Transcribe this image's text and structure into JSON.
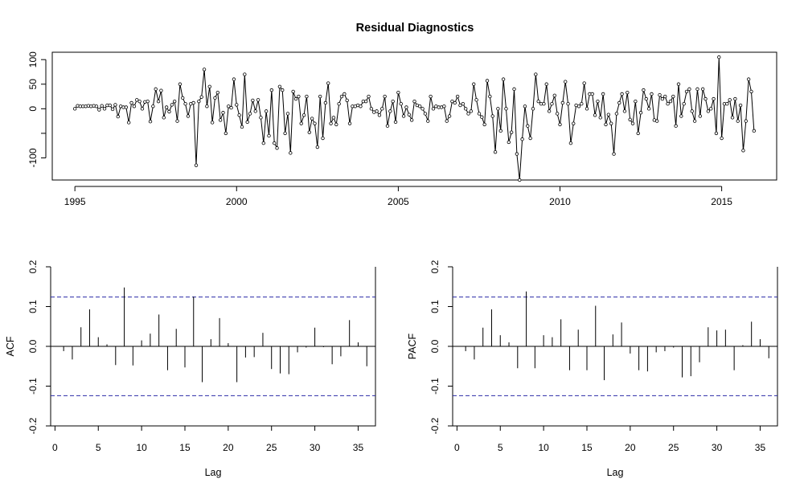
{
  "title": "Residual Diagnostics",
  "chart_data": [
    {
      "type": "line",
      "panel": "residuals",
      "title": "Residual Diagnostics",
      "xlabel": "",
      "ylabel": "",
      "x_ticks": [
        "1995",
        "2000",
        "2005",
        "2010",
        "2015"
      ],
      "y_ticks": [
        "-100",
        "",
        "0",
        "50",
        "100"
      ],
      "xlim": [
        1994.3,
        2016.7
      ],
      "ylim": [
        -145,
        115
      ],
      "grid": false,
      "markers": "open-circle",
      "start": 1995.0,
      "frequency": 12,
      "values": [
        0,
        6,
        5,
        5,
        5,
        6,
        5,
        6,
        5,
        -2,
        6,
        0,
        7,
        7,
        -1,
        8,
        -16,
        5,
        3,
        3,
        -28,
        12,
        5,
        18,
        15,
        0,
        14,
        15,
        -26,
        5,
        40,
        15,
        37,
        -18,
        3,
        -6,
        8,
        15,
        -25,
        50,
        22,
        10,
        -15,
        10,
        12,
        -115,
        15,
        24,
        80,
        5,
        45,
        -28,
        22,
        33,
        -23,
        -8,
        -50,
        5,
        2,
        60,
        8,
        -13,
        -37,
        70,
        -27,
        -10,
        17,
        -5,
        18,
        -18,
        -70,
        -5,
        -55,
        38,
        -70,
        -80,
        45,
        38,
        -50,
        -10,
        -90,
        35,
        20,
        25,
        -30,
        -13,
        25,
        -48,
        -20,
        -30,
        -78,
        25,
        -60,
        12,
        52,
        -30,
        -18,
        -32,
        10,
        25,
        30,
        17,
        -30,
        5,
        5,
        7,
        5,
        15,
        15,
        25,
        0,
        -7,
        -5,
        -13,
        0,
        25,
        -35,
        -5,
        15,
        -27,
        33,
        10,
        -15,
        3,
        -12,
        -23,
        15,
        7,
        5,
        0,
        -10,
        -25,
        25,
        0,
        5,
        3,
        3,
        5,
        -25,
        -15,
        15,
        12,
        25,
        7,
        10,
        0,
        -10,
        -5,
        50,
        18,
        -10,
        -17,
        -32,
        57,
        25,
        -15,
        -88,
        0,
        -45,
        60,
        0,
        -68,
        -48,
        40,
        -92,
        -145,
        -62,
        5,
        -35,
        -60,
        0,
        70,
        15,
        10,
        10,
        50,
        -5,
        10,
        27,
        -10,
        -32,
        12,
        55,
        10,
        -70,
        -30,
        7,
        5,
        10,
        52,
        0,
        30,
        30,
        -13,
        15,
        -18,
        30,
        -32,
        -12,
        -30,
        -92,
        -10,
        12,
        30,
        -5,
        33,
        -22,
        -30,
        15,
        -50,
        -8,
        38,
        20,
        0,
        30,
        -23,
        -25,
        28,
        20,
        25,
        10,
        15,
        25,
        -35,
        50,
        -15,
        10,
        35,
        40,
        -5,
        -25,
        40,
        -15,
        40,
        20,
        -5,
        0,
        20,
        -50,
        105,
        -60,
        10,
        10,
        18,
        -18,
        20,
        -25,
        7,
        -85,
        -25,
        60,
        35,
        -45
      ]
    },
    {
      "type": "bar",
      "panel": "acf",
      "xlabel": "Lag",
      "ylabel": "ACF",
      "x_ticks": [
        "0",
        "5",
        "10",
        "15",
        "20",
        "25",
        "30",
        "35"
      ],
      "y_ticks": [
        "-0.2",
        "-0.1",
        "0.0",
        "0.1",
        "0.2"
      ],
      "xlim": [
        -0.5,
        37
      ],
      "ylim": [
        -0.2,
        0.2
      ],
      "confidence_bounds": [
        -0.124,
        0.124
      ],
      "lags": [
        1,
        2,
        3,
        4,
        5,
        6,
        7,
        8,
        9,
        10,
        11,
        12,
        13,
        14,
        15,
        16,
        17,
        18,
        19,
        20,
        21,
        22,
        23,
        24,
        25,
        26,
        27,
        28,
        29,
        30,
        31,
        32,
        33,
        34,
        35,
        36
      ],
      "values": [
        -0.012,
        -0.033,
        0.048,
        0.093,
        0.023,
        0.005,
        -0.047,
        0.148,
        -0.048,
        0.015,
        0.032,
        0.08,
        -0.06,
        0.044,
        -0.053,
        0.125,
        -0.09,
        0.018,
        0.071,
        0.008,
        -0.09,
        -0.028,
        -0.027,
        0.034,
        -0.057,
        -0.068,
        -0.07,
        -0.015,
        -0.003,
        0.047,
        -0.002,
        -0.045,
        -0.025,
        0.066,
        0.01,
        -0.05
      ]
    },
    {
      "type": "bar",
      "panel": "pacf",
      "xlabel": "Lag",
      "ylabel": "PACF",
      "x_ticks": [
        "0",
        "5",
        "10",
        "15",
        "20",
        "25",
        "30",
        "35"
      ],
      "y_ticks": [
        "-0.2",
        "-0.1",
        "0.0",
        "0.1",
        "0.2"
      ],
      "xlim": [
        -0.5,
        37
      ],
      "ylim": [
        -0.2,
        0.2
      ],
      "confidence_bounds": [
        -0.124,
        0.124
      ],
      "lags": [
        1,
        2,
        3,
        4,
        5,
        6,
        7,
        8,
        9,
        10,
        11,
        12,
        13,
        14,
        15,
        16,
        17,
        18,
        19,
        20,
        21,
        22,
        23,
        24,
        25,
        26,
        27,
        28,
        29,
        30,
        31,
        32,
        33,
        34,
        35,
        36
      ],
      "values": [
        -0.012,
        -0.033,
        0.047,
        0.093,
        0.028,
        0.01,
        -0.055,
        0.138,
        -0.055,
        0.028,
        0.023,
        0.068,
        -0.06,
        0.042,
        -0.06,
        0.102,
        -0.085,
        0.03,
        0.06,
        -0.018,
        -0.06,
        -0.063,
        -0.015,
        -0.012,
        -0.003,
        -0.078,
        -0.075,
        -0.04,
        0.048,
        0.04,
        0.042,
        -0.06,
        0.003,
        0.062,
        0.018,
        -0.03
      ]
    }
  ]
}
